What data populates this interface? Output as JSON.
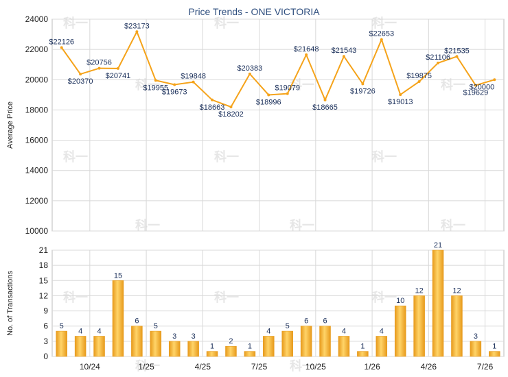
{
  "title": "Price Trends - ONE VICTORIA",
  "watermark_text": "科一",
  "colors": {
    "line": "#f5a31a",
    "bar_light": "#ffd468",
    "bar_dark": "#e79a1c",
    "grid": "#d8d8d8",
    "axis": "#666666",
    "title": "#2f4f7f",
    "label": "#1a2f5a"
  },
  "chart_data": [
    {
      "type": "line",
      "ylabel": "Average Price",
      "ylim": [
        10000,
        24000
      ],
      "yticks": [
        10000,
        12000,
        14000,
        16000,
        18000,
        20000,
        22000,
        24000
      ],
      "grid": true,
      "point_label_prefix": "$",
      "values": [
        22126,
        20370,
        20756,
        20741,
        23173,
        19955,
        19673,
        19848,
        18663,
        18202,
        20383,
        18996,
        19079,
        21648,
        18665,
        21543,
        19726,
        22653,
        19013,
        19875,
        21106,
        21535,
        19629,
        20000
      ]
    },
    {
      "type": "bar",
      "ylabel": "No. of Transactions",
      "ylim": [
        0,
        21
      ],
      "yticks": [
        0,
        3,
        6,
        9,
        12,
        15,
        18,
        21
      ],
      "grid": true,
      "values": [
        5,
        4,
        4,
        15,
        6,
        5,
        3,
        3,
        1,
        2,
        1,
        4,
        5,
        6,
        6,
        4,
        1,
        4,
        10,
        12,
        21,
        12,
        3,
        1
      ],
      "xticks": [
        "10/24",
        "1/25",
        "4/25",
        "7/25",
        "10/25",
        "1/26",
        "4/26",
        "7/26"
      ]
    }
  ]
}
